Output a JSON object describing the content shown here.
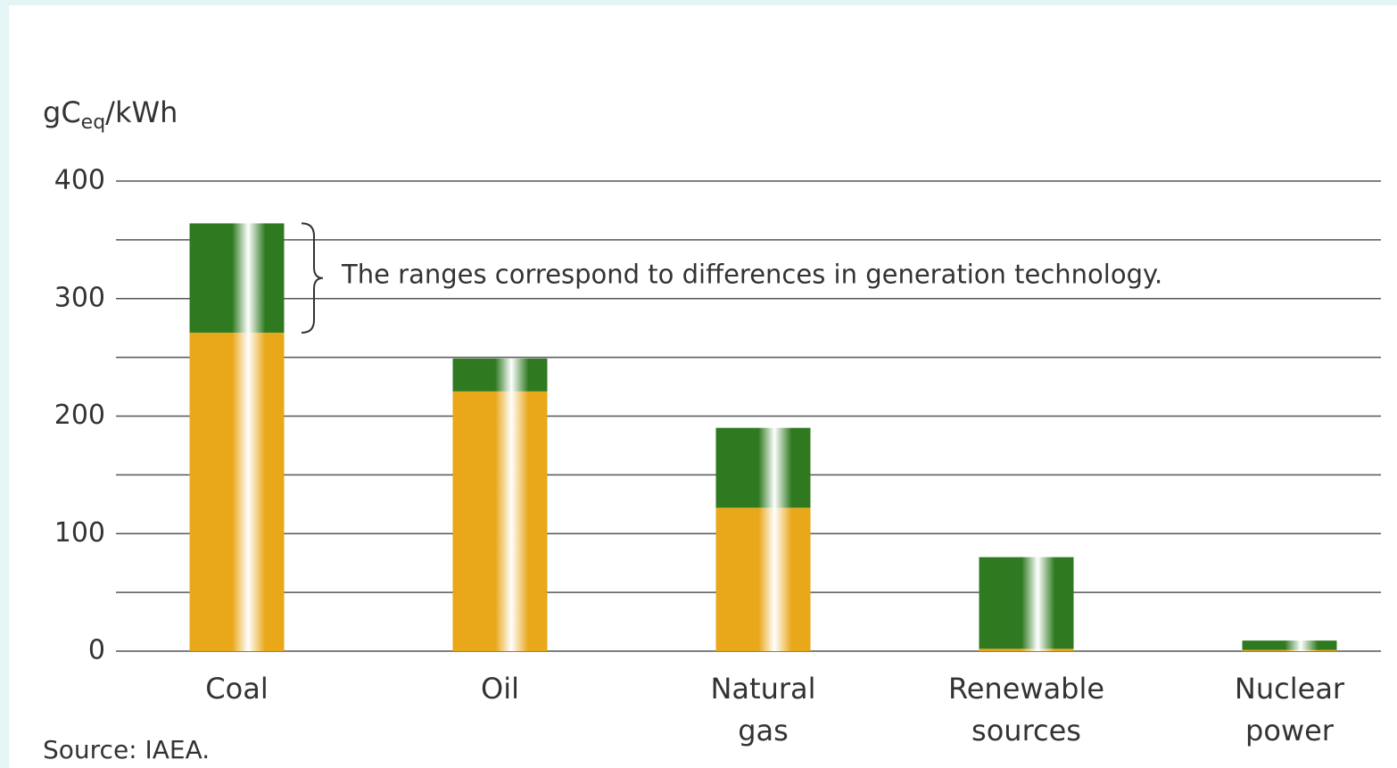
{
  "chart_data": {
    "type": "stacked_bar",
    "y_label": {
      "base": "gC",
      "sub": "eq",
      "rest": "/kWh"
    },
    "categories": [
      [
        "Coal"
      ],
      [
        "Oil"
      ],
      [
        "Natural",
        "gas"
      ],
      [
        "Renewable",
        "sources"
      ],
      [
        "Nuclear",
        "power"
      ]
    ],
    "series": [
      {
        "color": "#e9a71a",
        "values": [
          271,
          221,
          122,
          2,
          1
        ]
      },
      {
        "color": "#2f7a21",
        "values": [
          93,
          28,
          68,
          78,
          8
        ]
      }
    ],
    "ylim": [
      0,
      400
    ],
    "yticks": [
      0,
      100,
      200,
      300,
      400
    ],
    "minor_yticks": [
      50,
      150,
      250,
      350
    ],
    "grid": true,
    "annotation": "The ranges correspond to differences in generation technology.",
    "source": "Source: IAEA."
  }
}
